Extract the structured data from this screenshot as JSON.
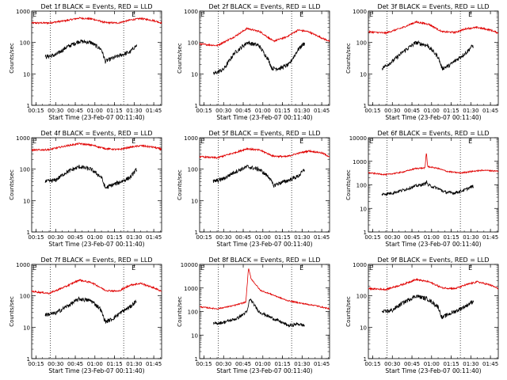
{
  "figure": {
    "xlabel": "Start Time (23-Feb-07 00:11:40)",
    "ylabel": "Counts/sec",
    "x_ticks": [
      "00:15",
      "00:30",
      "00:45",
      "01:00",
      "01:15",
      "01:30",
      "01:45"
    ],
    "marker_labels": [
      "E",
      "E"
    ],
    "dotted_lines_at": [
      "00:26",
      "01:22"
    ],
    "series_colors": {
      "events": "#000000",
      "lld": "#e00000"
    }
  },
  "chart_data": [
    {
      "type": "line",
      "title": "Det 1f BLACK = Events, RED = LLD",
      "yscale": "log",
      "ylim": [
        1,
        1000
      ],
      "y_ticks": [
        "1",
        "10",
        "100",
        "1000"
      ],
      "xlim": [
        "00:11:40",
        "01:51"
      ],
      "events_range": [
        "00:22",
        "01:32"
      ],
      "events_key": [
        {
          "t": "00:22",
          "v": 35
        },
        {
          "t": "00:30",
          "v": 40
        },
        {
          "t": "00:38",
          "v": 70
        },
        {
          "t": "00:48",
          "v": 110
        },
        {
          "t": "00:57",
          "v": 100
        },
        {
          "t": "01:05",
          "v": 60
        },
        {
          "t": "01:08",
          "v": 25
        },
        {
          "t": "01:12",
          "v": 30
        },
        {
          "t": "01:20",
          "v": 40
        },
        {
          "t": "01:27",
          "v": 50
        },
        {
          "t": "01:30",
          "v": 70
        },
        {
          "t": "01:32",
          "v": 80
        }
      ],
      "lld_key": [
        {
          "t": "00:11",
          "v": 420
        },
        {
          "t": "00:25",
          "v": 420
        },
        {
          "t": "00:38",
          "v": 500
        },
        {
          "t": "00:48",
          "v": 600
        },
        {
          "t": "00:58",
          "v": 560
        },
        {
          "t": "01:08",
          "v": 430
        },
        {
          "t": "01:18",
          "v": 420
        },
        {
          "t": "01:27",
          "v": 520
        },
        {
          "t": "01:35",
          "v": 580
        },
        {
          "t": "01:45",
          "v": 500
        },
        {
          "t": "01:51",
          "v": 420
        }
      ]
    },
    {
      "type": "line",
      "title": "Det 2f BLACK = Events, RED = LLD",
      "yscale": "log",
      "ylim": [
        1,
        1000
      ],
      "y_ticks": [
        "1",
        "10",
        "100",
        "1000"
      ],
      "xlim": [
        "00:11:40",
        "01:51"
      ],
      "events_range": [
        "00:22",
        "01:32"
      ],
      "events_key": [
        {
          "t": "00:22",
          "v": 10
        },
        {
          "t": "00:30",
          "v": 14
        },
        {
          "t": "00:38",
          "v": 45
        },
        {
          "t": "00:48",
          "v": 100
        },
        {
          "t": "00:57",
          "v": 80
        },
        {
          "t": "01:04",
          "v": 30
        },
        {
          "t": "01:07",
          "v": 15
        },
        {
          "t": "01:13",
          "v": 15
        },
        {
          "t": "01:20",
          "v": 20
        },
        {
          "t": "01:27",
          "v": 60
        },
        {
          "t": "01:31",
          "v": 90
        },
        {
          "t": "01:32",
          "v": 95
        }
      ],
      "lld_key": [
        {
          "t": "00:11",
          "v": 90
        },
        {
          "t": "00:25",
          "v": 80
        },
        {
          "t": "00:38",
          "v": 150
        },
        {
          "t": "00:48",
          "v": 280
        },
        {
          "t": "00:58",
          "v": 220
        },
        {
          "t": "01:08",
          "v": 110
        },
        {
          "t": "01:18",
          "v": 150
        },
        {
          "t": "01:27",
          "v": 250
        },
        {
          "t": "01:35",
          "v": 220
        },
        {
          "t": "01:45",
          "v": 140
        },
        {
          "t": "01:51",
          "v": 110
        }
      ]
    },
    {
      "type": "line",
      "title": "Det 3f BLACK = Events, RED = LLD",
      "yscale": "log",
      "ylim": [
        1,
        1000
      ],
      "y_ticks": [
        "1",
        "10",
        "100",
        "1000"
      ],
      "xlim": [
        "00:11:40",
        "01:51"
      ],
      "events_range": [
        "00:22",
        "01:32"
      ],
      "events_key": [
        {
          "t": "00:22",
          "v": 15
        },
        {
          "t": "00:30",
          "v": 25
        },
        {
          "t": "00:38",
          "v": 50
        },
        {
          "t": "00:48",
          "v": 100
        },
        {
          "t": "00:57",
          "v": 80
        },
        {
          "t": "01:05",
          "v": 35
        },
        {
          "t": "01:08",
          "v": 15
        },
        {
          "t": "01:13",
          "v": 18
        },
        {
          "t": "01:20",
          "v": 30
        },
        {
          "t": "01:27",
          "v": 50
        },
        {
          "t": "01:30",
          "v": 70
        },
        {
          "t": "01:32",
          "v": 80
        }
      ],
      "lld_key": [
        {
          "t": "00:11",
          "v": 220
        },
        {
          "t": "00:25",
          "v": 200
        },
        {
          "t": "00:38",
          "v": 300
        },
        {
          "t": "00:48",
          "v": 450
        },
        {
          "t": "00:58",
          "v": 380
        },
        {
          "t": "01:08",
          "v": 220
        },
        {
          "t": "01:18",
          "v": 210
        },
        {
          "t": "01:27",
          "v": 280
        },
        {
          "t": "01:35",
          "v": 300
        },
        {
          "t": "01:45",
          "v": 250
        },
        {
          "t": "01:51",
          "v": 200
        }
      ]
    },
    {
      "type": "line",
      "title": "Det 4f BLACK = Events, RED = LLD",
      "yscale": "log",
      "ylim": [
        1,
        1000
      ],
      "y_ticks": [
        "1",
        "10",
        "100",
        "1000"
      ],
      "xlim": [
        "00:11:40",
        "01:51"
      ],
      "events_range": [
        "00:22",
        "01:32"
      ],
      "events_key": [
        {
          "t": "00:22",
          "v": 40
        },
        {
          "t": "00:30",
          "v": 45
        },
        {
          "t": "00:38",
          "v": 80
        },
        {
          "t": "00:48",
          "v": 120
        },
        {
          "t": "00:57",
          "v": 100
        },
        {
          "t": "01:05",
          "v": 55
        },
        {
          "t": "01:08",
          "v": 25
        },
        {
          "t": "01:12",
          "v": 30
        },
        {
          "t": "01:20",
          "v": 40
        },
        {
          "t": "01:27",
          "v": 55
        },
        {
          "t": "01:30",
          "v": 80
        },
        {
          "t": "01:32",
          "v": 100
        }
      ],
      "lld_key": [
        {
          "t": "00:11",
          "v": 400
        },
        {
          "t": "00:25",
          "v": 420
        },
        {
          "t": "00:38",
          "v": 550
        },
        {
          "t": "00:48",
          "v": 650
        },
        {
          "t": "00:58",
          "v": 580
        },
        {
          "t": "01:08",
          "v": 450
        },
        {
          "t": "01:18",
          "v": 420
        },
        {
          "t": "01:27",
          "v": 500
        },
        {
          "t": "01:35",
          "v": 560
        },
        {
          "t": "01:45",
          "v": 500
        },
        {
          "t": "01:51",
          "v": 430
        }
      ]
    },
    {
      "type": "line",
      "title": "Det 5f BLACK = Events, RED = LLD",
      "yscale": "log",
      "ylim": [
        1,
        1000
      ],
      "y_ticks": [
        "1",
        "10",
        "100",
        "1000"
      ],
      "xlim": [
        "00:11:40",
        "01:51"
      ],
      "events_range": [
        "00:22",
        "01:32"
      ],
      "events_key": [
        {
          "t": "00:22",
          "v": 40
        },
        {
          "t": "00:30",
          "v": 50
        },
        {
          "t": "00:38",
          "v": 80
        },
        {
          "t": "00:48",
          "v": 120
        },
        {
          "t": "00:57",
          "v": 100
        },
        {
          "t": "01:05",
          "v": 55
        },
        {
          "t": "01:08",
          "v": 30
        },
        {
          "t": "01:12",
          "v": 35
        },
        {
          "t": "01:20",
          "v": 45
        },
        {
          "t": "01:27",
          "v": 60
        },
        {
          "t": "01:30",
          "v": 80
        },
        {
          "t": "01:32",
          "v": 100
        }
      ],
      "lld_key": [
        {
          "t": "00:11",
          "v": 250
        },
        {
          "t": "00:25",
          "v": 230
        },
        {
          "t": "00:38",
          "v": 330
        },
        {
          "t": "00:48",
          "v": 450
        },
        {
          "t": "00:58",
          "v": 400
        },
        {
          "t": "01:08",
          "v": 260
        },
        {
          "t": "01:18",
          "v": 250
        },
        {
          "t": "01:27",
          "v": 320
        },
        {
          "t": "01:35",
          "v": 380
        },
        {
          "t": "01:45",
          "v": 330
        },
        {
          "t": "01:51",
          "v": 250
        }
      ]
    },
    {
      "type": "line",
      "title": "Det 6f BLACK = Events, RED = LLD",
      "yscale": "log",
      "ylim": [
        1,
        10000
      ],
      "y_ticks": [
        "1",
        "10",
        "100",
        "1000",
        "10000"
      ],
      "xlim": [
        "00:11:40",
        "01:51"
      ],
      "events_range": [
        "00:22",
        "01:32"
      ],
      "events_key": [
        {
          "t": "00:22",
          "v": 40
        },
        {
          "t": "00:30",
          "v": 45
        },
        {
          "t": "00:38",
          "v": 60
        },
        {
          "t": "00:48",
          "v": 90
        },
        {
          "t": "00:55",
          "v": 110
        },
        {
          "t": "00:56",
          "v": 150
        },
        {
          "t": "00:57",
          "v": 100
        },
        {
          "t": "01:05",
          "v": 70
        },
        {
          "t": "01:10",
          "v": 50
        },
        {
          "t": "01:17",
          "v": 45
        },
        {
          "t": "01:25",
          "v": 60
        },
        {
          "t": "01:32",
          "v": 90
        }
      ],
      "lld_key": [
        {
          "t": "00:11",
          "v": 330
        },
        {
          "t": "00:25",
          "v": 270
        },
        {
          "t": "00:38",
          "v": 350
        },
        {
          "t": "00:48",
          "v": 500
        },
        {
          "t": "00:55",
          "v": 520
        },
        {
          "t": "00:56",
          "v": 2500
        },
        {
          "t": "00:57",
          "v": 600
        },
        {
          "t": "01:05",
          "v": 500
        },
        {
          "t": "01:12",
          "v": 370
        },
        {
          "t": "01:22",
          "v": 320
        },
        {
          "t": "01:32",
          "v": 380
        },
        {
          "t": "01:40",
          "v": 420
        },
        {
          "t": "01:51",
          "v": 380
        }
      ]
    },
    {
      "type": "line",
      "title": "Det 7f BLACK = Events, RED = LLD",
      "yscale": "log",
      "ylim": [
        1,
        1000
      ],
      "y_ticks": [
        "1",
        "10",
        "100",
        "1000"
      ],
      "xlim": [
        "00:11:40",
        "01:51"
      ],
      "events_range": [
        "00:22",
        "01:32"
      ],
      "events_key": [
        {
          "t": "00:22",
          "v": 25
        },
        {
          "t": "00:30",
          "v": 28
        },
        {
          "t": "00:38",
          "v": 45
        },
        {
          "t": "00:48",
          "v": 80
        },
        {
          "t": "00:57",
          "v": 70
        },
        {
          "t": "01:04",
          "v": 40
        },
        {
          "t": "01:08",
          "v": 15
        },
        {
          "t": "01:13",
          "v": 18
        },
        {
          "t": "01:20",
          "v": 30
        },
        {
          "t": "01:27",
          "v": 45
        },
        {
          "t": "01:30",
          "v": 60
        },
        {
          "t": "01:32",
          "v": 70
        }
      ],
      "lld_key": [
        {
          "t": "00:11",
          "v": 140
        },
        {
          "t": "00:25",
          "v": 120
        },
        {
          "t": "00:38",
          "v": 200
        },
        {
          "t": "00:48",
          "v": 320
        },
        {
          "t": "00:58",
          "v": 260
        },
        {
          "t": "01:08",
          "v": 150
        },
        {
          "t": "01:18",
          "v": 140
        },
        {
          "t": "01:27",
          "v": 220
        },
        {
          "t": "01:35",
          "v": 250
        },
        {
          "t": "01:45",
          "v": 180
        },
        {
          "t": "01:51",
          "v": 140
        }
      ]
    },
    {
      "type": "line",
      "title": "Det 8f BLACK = Events, RED = LLD",
      "yscale": "log",
      "ylim": [
        1,
        10000
      ],
      "y_ticks": [
        "1",
        "10",
        "100",
        "1000",
        "10000"
      ],
      "xlim": [
        "00:11:40",
        "01:51"
      ],
      "events_range": [
        "00:22",
        "01:32"
      ],
      "events_key": [
        {
          "t": "00:22",
          "v": 30
        },
        {
          "t": "00:30",
          "v": 35
        },
        {
          "t": "00:40",
          "v": 50
        },
        {
          "t": "00:48",
          "v": 100
        },
        {
          "t": "00:50",
          "v": 350
        },
        {
          "t": "00:52",
          "v": 250
        },
        {
          "t": "00:57",
          "v": 100
        },
        {
          "t": "01:05",
          "v": 60
        },
        {
          "t": "01:12",
          "v": 40
        },
        {
          "t": "01:20",
          "v": 25
        },
        {
          "t": "01:27",
          "v": 30
        },
        {
          "t": "01:32",
          "v": 25
        }
      ],
      "lld_key": [
        {
          "t": "00:11",
          "v": 160
        },
        {
          "t": "00:25",
          "v": 130
        },
        {
          "t": "00:38",
          "v": 180
        },
        {
          "t": "00:47",
          "v": 250
        },
        {
          "t": "00:49",
          "v": 7000
        },
        {
          "t": "00:51",
          "v": 2500
        },
        {
          "t": "00:58",
          "v": 800
        },
        {
          "t": "01:08",
          "v": 500
        },
        {
          "t": "01:18",
          "v": 300
        },
        {
          "t": "01:30",
          "v": 220
        },
        {
          "t": "01:40",
          "v": 180
        },
        {
          "t": "01:51",
          "v": 130
        }
      ]
    },
    {
      "type": "line",
      "title": "Det 9f BLACK = Events, RED = LLD",
      "yscale": "log",
      "ylim": [
        1,
        1000
      ],
      "y_ticks": [
        "1",
        "10",
        "100",
        "1000"
      ],
      "xlim": [
        "00:11:40",
        "01:51"
      ],
      "events_range": [
        "00:22",
        "01:32"
      ],
      "events_key": [
        {
          "t": "00:22",
          "v": 30
        },
        {
          "t": "00:30",
          "v": 35
        },
        {
          "t": "00:38",
          "v": 60
        },
        {
          "t": "00:48",
          "v": 100
        },
        {
          "t": "00:57",
          "v": 80
        },
        {
          "t": "01:05",
          "v": 45
        },
        {
          "t": "01:08",
          "v": 20
        },
        {
          "t": "01:12",
          "v": 25
        },
        {
          "t": "01:20",
          "v": 35
        },
        {
          "t": "01:27",
          "v": 50
        },
        {
          "t": "01:30",
          "v": 60
        },
        {
          "t": "01:32",
          "v": 70
        }
      ],
      "lld_key": [
        {
          "t": "00:11",
          "v": 170
        },
        {
          "t": "00:25",
          "v": 160
        },
        {
          "t": "00:38",
          "v": 230
        },
        {
          "t": "00:48",
          "v": 330
        },
        {
          "t": "00:58",
          "v": 280
        },
        {
          "t": "01:08",
          "v": 180
        },
        {
          "t": "01:18",
          "v": 170
        },
        {
          "t": "01:27",
          "v": 230
        },
        {
          "t": "01:35",
          "v": 280
        },
        {
          "t": "01:45",
          "v": 220
        },
        {
          "t": "01:51",
          "v": 170
        }
      ]
    }
  ]
}
